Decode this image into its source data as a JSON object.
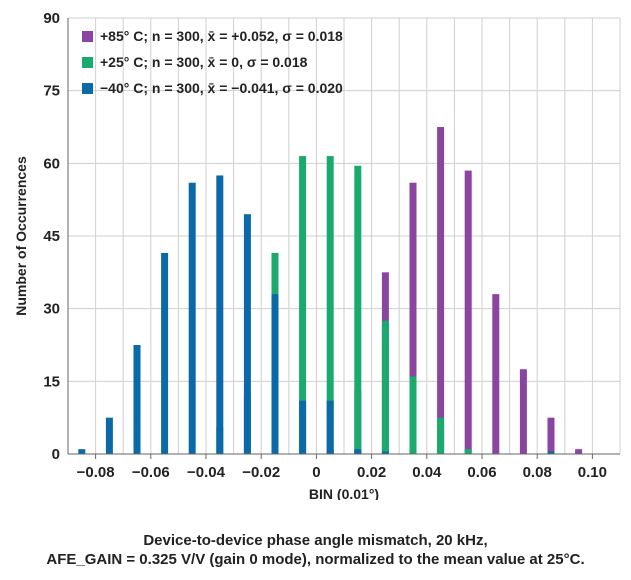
{
  "chart_data": {
    "type": "bar",
    "ylabel": "Number of Occurrences",
    "xlabel": "BIN (0.01°)",
    "ylim": [
      0,
      90
    ],
    "xlim": [
      -0.09,
      0.11
    ],
    "yticks": [
      "0",
      "15",
      "30",
      "45",
      "60",
      "75",
      "90"
    ],
    "xticks": [
      "−0.08",
      "−0.06",
      "−0.04",
      "−0.02",
      "0",
      "0.02",
      "0.04",
      "0.06",
      "0.08",
      "0.10"
    ],
    "grid": true,
    "legend_position": "top-left",
    "series": [
      {
        "name": "+85° C; n = 300, x̄ = +0.052, σ = 0.018",
        "color": "#8a45a0",
        "x": [
          0.005,
          0.015,
          0.025,
          0.035,
          0.045,
          0.055,
          0.065,
          0.075,
          0.085,
          0.095
        ],
        "values": [
          1,
          13,
          37.5,
          56,
          67.5,
          58.5,
          33,
          17.5,
          7.5,
          1
        ]
      },
      {
        "name": "+25° C; n = 300, x̄ = 0, σ = 0.018",
        "color": "#1aaa6e",
        "x": [
          -0.035,
          -0.025,
          -0.015,
          -0.005,
          0.005,
          0.015,
          0.025,
          0.035,
          0.045,
          0.055
        ],
        "values": [
          5.5,
          12.5,
          41.5,
          61.5,
          61.5,
          59.5,
          27.5,
          16,
          7.5,
          1
        ]
      },
      {
        "name": "−40° C; n = 300, x̄ = −0.041, σ = 0.020",
        "color": "#0a6aa8",
        "x": [
          -0.085,
          -0.075,
          -0.065,
          -0.055,
          -0.045,
          -0.035,
          -0.025,
          -0.015,
          -0.005,
          0.005,
          0.015,
          0.025,
          0.085
        ],
        "values": [
          1,
          7.5,
          22.5,
          41.5,
          56,
          57.5,
          49.5,
          33,
          11,
          11,
          1,
          0.5,
          0.5
        ]
      }
    ]
  },
  "caption": {
    "line1": "Device-to-device phase angle mismatch, 20 kHz,",
    "line2": "AFE_GAIN = 0.325 V/V (gain 0 mode), normalized to the mean value at 25°C."
  }
}
